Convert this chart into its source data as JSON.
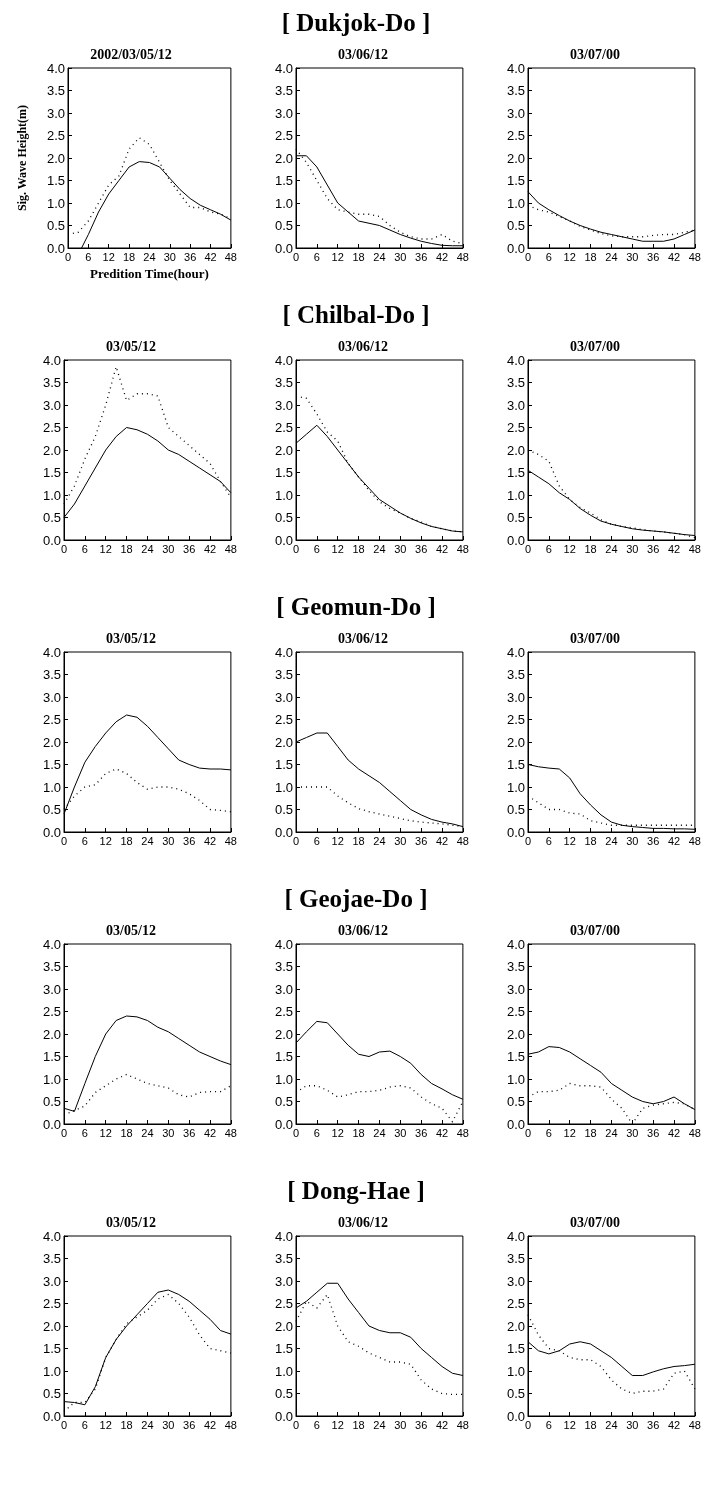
{
  "chart_data": [
    {
      "type": "line",
      "title": "2002/03/05/12",
      "xlabel": "Predition Time(hour)",
      "ylabel": "Sig. Wave Height(m)",
      "x": [
        0,
        3,
        6,
        9,
        12,
        15,
        18,
        21,
        24,
        27,
        30,
        33,
        36,
        39,
        42,
        45,
        48
      ],
      "xlim": [
        0,
        48
      ],
      "ylim": [
        0,
        4
      ],
      "xticks": [
        0,
        6,
        12,
        18,
        24,
        30,
        36,
        42,
        48
      ],
      "yticks": [
        {
          "value": 0,
          "label": "0.0"
        },
        {
          "value": 0.5,
          "label": "0.5"
        },
        {
          "value": 1,
          "label": "1.0"
        },
        {
          "value": 1.5,
          "label": "1.5"
        },
        {
          "value": 2,
          "label": "2.0"
        },
        {
          "value": 2.5,
          "label": "2.5"
        },
        {
          "value": 3,
          "label": "3.0"
        },
        {
          "value": 3.5,
          "label": "3.5"
        },
        {
          "value": 4,
          "label": "4.0"
        }
      ],
      "marker": "none",
      "series": [
        {
          "color": "#000000",
          "line_style": "solid",
          "x": [
            4,
            6,
            9,
            12,
            15,
            18,
            21,
            24,
            27,
            30,
            33,
            36,
            39,
            42,
            45,
            48
          ],
          "values": [
            0,
            0.3,
            0.8,
            1.2,
            1.5,
            1.8,
            1.92,
            1.9,
            1.8,
            1.55,
            1.3,
            1.1,
            0.95,
            0.85,
            0.75,
            0.62
          ]
        },
        {
          "color": "#000000",
          "line_style": "dotted",
          "values": [
            0.3,
            0.35,
            0.6,
            1.0,
            1.4,
            1.6,
            2.2,
            2.45,
            2.3,
            1.9,
            1.5,
            1.2,
            0.9,
            0.9,
            0.8,
            0.75,
            0.65
          ]
        }
      ]
    },
    {
      "type": "line",
      "title": "03/06/12",
      "annotations": [
        "[ Dukjok-Do ]"
      ],
      "x": [
        0,
        3,
        6,
        9,
        12,
        15,
        18,
        21,
        24,
        27,
        30,
        33,
        36,
        39,
        42,
        45,
        48
      ],
      "xlim": [
        0,
        48
      ],
      "ylim": [
        0,
        4
      ],
      "xticks": [
        0,
        6,
        12,
        18,
        24,
        30,
        36,
        42,
        48
      ],
      "yticks": [
        {
          "value": 0,
          "label": "0.0"
        },
        {
          "value": 0.5,
          "label": "0.5"
        },
        {
          "value": 1,
          "label": "1.0"
        },
        {
          "value": 1.5,
          "label": "1.5"
        },
        {
          "value": 2,
          "label": "2.0"
        },
        {
          "value": 2.5,
          "label": "2.5"
        },
        {
          "value": 3,
          "label": "3.0"
        },
        {
          "value": 3.5,
          "label": "3.5"
        },
        {
          "value": 4,
          "label": "4.0"
        }
      ],
      "marker": "none",
      "series": [
        {
          "color": "#000000",
          "line_style": "solid",
          "values": [
            2.05,
            2.05,
            1.8,
            1.4,
            1.0,
            0.8,
            0.6,
            0.55,
            0.5,
            0.4,
            0.3,
            0.22,
            0.15,
            0.1,
            0.06,
            0.05,
            0.05
          ]
        },
        {
          "color": "#000000",
          "line_style": "dotted",
          "values": [
            2.2,
            1.9,
            1.5,
            1.1,
            0.85,
            0.8,
            0.75,
            0.75,
            0.7,
            0.5,
            0.35,
            0.25,
            0.2,
            0.2,
            0.3,
            0.15,
            0.1
          ]
        }
      ]
    },
    {
      "type": "line",
      "title": "03/07/00",
      "x": [
        0,
        3,
        6,
        9,
        12,
        15,
        18,
        21,
        24,
        27,
        30,
        33,
        36,
        39,
        42,
        45,
        48
      ],
      "xlim": [
        0,
        48
      ],
      "ylim": [
        0,
        4
      ],
      "xticks": [
        0,
        6,
        12,
        18,
        24,
        30,
        36,
        42,
        48
      ],
      "yticks": [
        {
          "value": 0,
          "label": "0.0"
        },
        {
          "value": 0.5,
          "label": "0.5"
        },
        {
          "value": 1,
          "label": "1.0"
        },
        {
          "value": 1.5,
          "label": "1.5"
        },
        {
          "value": 2,
          "label": "2.0"
        },
        {
          "value": 2.5,
          "label": "2.5"
        },
        {
          "value": 3,
          "label": "3.0"
        },
        {
          "value": 3.5,
          "label": "3.5"
        },
        {
          "value": 4,
          "label": "4.0"
        }
      ],
      "marker": "none",
      "series": [
        {
          "color": "#000000",
          "line_style": "solid",
          "values": [
            1.25,
            1.0,
            0.85,
            0.72,
            0.6,
            0.5,
            0.42,
            0.35,
            0.3,
            0.25,
            0.2,
            0.15,
            0.15,
            0.15,
            0.2,
            0.3,
            0.4
          ]
        },
        {
          "color": "#000000",
          "line_style": "dotted",
          "values": [
            0.95,
            0.85,
            0.8,
            0.7,
            0.6,
            0.48,
            0.4,
            0.32,
            0.27,
            0.25,
            0.25,
            0.25,
            0.28,
            0.3,
            0.3,
            0.35,
            0.4
          ]
        }
      ]
    },
    {
      "type": "line",
      "title": "03/05/12",
      "x": [
        0,
        3,
        6,
        9,
        12,
        15,
        18,
        21,
        24,
        27,
        30,
        33,
        36,
        39,
        42,
        45,
        48
      ],
      "xlim": [
        0,
        48
      ],
      "ylim": [
        0,
        4
      ],
      "xticks": [
        0,
        6,
        12,
        18,
        24,
        30,
        36,
        42,
        48
      ],
      "yticks": [
        {
          "value": 0,
          "label": "0.0"
        },
        {
          "value": 0.5,
          "label": "0.5"
        },
        {
          "value": 1,
          "label": "1.0"
        },
        {
          "value": 1.5,
          "label": "1.5"
        },
        {
          "value": 2,
          "label": "2.0"
        },
        {
          "value": 2.5,
          "label": "2.5"
        },
        {
          "value": 3,
          "label": "3.0"
        },
        {
          "value": 3.5,
          "label": "3.5"
        },
        {
          "value": 4,
          "label": "4.0"
        }
      ],
      "marker": "none",
      "series": [
        {
          "color": "#000000",
          "line_style": "solid",
          "values": [
            0.5,
            0.8,
            1.2,
            1.6,
            2.0,
            2.3,
            2.5,
            2.45,
            2.35,
            2.2,
            2.0,
            1.9,
            1.75,
            1.6,
            1.45,
            1.3,
            1.05
          ]
        },
        {
          "color": "#000000",
          "line_style": "dotted",
          "values": [
            0.8,
            1.2,
            1.8,
            2.3,
            3.0,
            3.85,
            3.1,
            3.25,
            3.25,
            3.2,
            2.5,
            2.3,
            2.1,
            1.9,
            1.7,
            1.3,
            0.95
          ]
        }
      ]
    },
    {
      "type": "line",
      "title": "03/06/12",
      "annotations": [
        "[ Chilbal-Do ]"
      ],
      "x": [
        0,
        3,
        6,
        9,
        12,
        15,
        18,
        21,
        24,
        27,
        30,
        33,
        36,
        39,
        42,
        45,
        48
      ],
      "xlim": [
        0,
        48
      ],
      "ylim": [
        0,
        4
      ],
      "xticks": [
        0,
        6,
        12,
        18,
        24,
        30,
        36,
        42,
        48
      ],
      "yticks": [
        {
          "value": 0,
          "label": "0.0"
        },
        {
          "value": 0.5,
          "label": "0.5"
        },
        {
          "value": 1,
          "label": "1.0"
        },
        {
          "value": 1.5,
          "label": "1.5"
        },
        {
          "value": 2,
          "label": "2.0"
        },
        {
          "value": 2.5,
          "label": "2.5"
        },
        {
          "value": 3,
          "label": "3.0"
        },
        {
          "value": 3.5,
          "label": "3.5"
        },
        {
          "value": 4,
          "label": "4.0"
        }
      ],
      "marker": "none",
      "series": [
        {
          "color": "#000000",
          "line_style": "solid",
          "values": [
            2.15,
            2.35,
            2.55,
            2.3,
            2.0,
            1.7,
            1.4,
            1.15,
            0.9,
            0.75,
            0.6,
            0.48,
            0.38,
            0.3,
            0.25,
            0.2,
            0.18
          ]
        },
        {
          "color": "#000000",
          "line_style": "dotted",
          "values": [
            3.2,
            3.15,
            2.8,
            2.4,
            2.2,
            1.7,
            1.4,
            1.1,
            0.85,
            0.7,
            0.6,
            0.48,
            0.4,
            0.3,
            0.25,
            0.2,
            0.18
          ]
        }
      ]
    },
    {
      "type": "line",
      "title": "03/07/00",
      "x": [
        0,
        3,
        6,
        9,
        12,
        15,
        18,
        21,
        24,
        27,
        30,
        33,
        36,
        39,
        42,
        45,
        48
      ],
      "xlim": [
        0,
        48
      ],
      "ylim": [
        0,
        4
      ],
      "xticks": [
        0,
        6,
        12,
        18,
        24,
        30,
        36,
        42,
        48
      ],
      "yticks": [
        {
          "value": 0,
          "label": "0.0"
        },
        {
          "value": 0.5,
          "label": "0.5"
        },
        {
          "value": 1,
          "label": "1.0"
        },
        {
          "value": 1.5,
          "label": "1.5"
        },
        {
          "value": 2,
          "label": "2.0"
        },
        {
          "value": 2.5,
          "label": "2.5"
        },
        {
          "value": 3,
          "label": "3.0"
        },
        {
          "value": 3.5,
          "label": "3.5"
        },
        {
          "value": 4,
          "label": "4.0"
        }
      ],
      "marker": "none",
      "series": [
        {
          "color": "#000000",
          "line_style": "solid",
          "values": [
            1.55,
            1.4,
            1.25,
            1.05,
            0.9,
            0.7,
            0.55,
            0.42,
            0.35,
            0.3,
            0.25,
            0.22,
            0.2,
            0.18,
            0.15,
            0.12,
            0.1
          ]
        },
        {
          "color": "#000000",
          "line_style": "dotted",
          "values": [
            2.0,
            1.9,
            1.75,
            1.2,
            0.9,
            0.72,
            0.6,
            0.45,
            0.35,
            0.3,
            0.27,
            0.23,
            0.2,
            0.18,
            0.15,
            0.12,
            0.05
          ]
        }
      ]
    },
    {
      "type": "line",
      "title": "03/05/12",
      "x": [
        0,
        3,
        6,
        9,
        12,
        15,
        18,
        21,
        24,
        27,
        30,
        33,
        36,
        39,
        42,
        45,
        48
      ],
      "xlim": [
        0,
        48
      ],
      "ylim": [
        0,
        4
      ],
      "xticks": [
        0,
        6,
        12,
        18,
        24,
        30,
        36,
        42,
        48
      ],
      "yticks": [
        {
          "value": 0,
          "label": "0.0"
        },
        {
          "value": 0.5,
          "label": "0.5"
        },
        {
          "value": 1,
          "label": "1.0"
        },
        {
          "value": 1.5,
          "label": "1.5"
        },
        {
          "value": 2,
          "label": "2.0"
        },
        {
          "value": 2.5,
          "label": "2.5"
        },
        {
          "value": 3,
          "label": "3.0"
        },
        {
          "value": 3.5,
          "label": "3.5"
        },
        {
          "value": 4,
          "label": "4.0"
        }
      ],
      "marker": "none",
      "series": [
        {
          "color": "#000000",
          "line_style": "solid",
          "values": [
            0.4,
            1.0,
            1.55,
            1.9,
            2.2,
            2.45,
            2.6,
            2.55,
            2.35,
            2.1,
            1.85,
            1.6,
            1.5,
            1.42,
            1.4,
            1.4,
            1.38
          ]
        },
        {
          "color": "#000000",
          "line_style": "dotted",
          "values": [
            0.5,
            0.8,
            1.0,
            1.05,
            1.3,
            1.4,
            1.3,
            1.1,
            0.95,
            1.0,
            1.0,
            0.95,
            0.85,
            0.7,
            0.5,
            0.48,
            0.45
          ]
        }
      ]
    },
    {
      "type": "line",
      "title": "03/06/12",
      "annotations": [
        "[ Geomun-Do ]"
      ],
      "x": [
        0,
        3,
        6,
        9,
        12,
        15,
        18,
        21,
        24,
        27,
        30,
        33,
        36,
        39,
        42,
        45,
        48
      ],
      "xlim": [
        0,
        48
      ],
      "ylim": [
        0,
        4
      ],
      "xticks": [
        0,
        6,
        12,
        18,
        24,
        30,
        36,
        42,
        48
      ],
      "yticks": [
        {
          "value": 0,
          "label": "0.0"
        },
        {
          "value": 0.5,
          "label": "0.5"
        },
        {
          "value": 1,
          "label": "1.0"
        },
        {
          "value": 1.5,
          "label": "1.5"
        },
        {
          "value": 2,
          "label": "2.0"
        },
        {
          "value": 2.5,
          "label": "2.5"
        },
        {
          "value": 3,
          "label": "3.0"
        },
        {
          "value": 3.5,
          "label": "3.5"
        },
        {
          "value": 4,
          "label": "4.0"
        }
      ],
      "marker": "none",
      "series": [
        {
          "color": "#000000",
          "line_style": "solid",
          "values": [
            2.0,
            2.1,
            2.2,
            2.2,
            1.9,
            1.6,
            1.4,
            1.25,
            1.1,
            0.9,
            0.7,
            0.5,
            0.38,
            0.28,
            0.22,
            0.18,
            0.12
          ]
        },
        {
          "color": "#000000",
          "line_style": "dotted",
          "values": [
            1.0,
            1.0,
            1.0,
            1.0,
            0.8,
            0.65,
            0.52,
            0.45,
            0.4,
            0.35,
            0.3,
            0.25,
            0.22,
            0.2,
            0.18,
            0.15,
            0.12
          ]
        }
      ]
    },
    {
      "type": "line",
      "title": "03/07/00",
      "x": [
        0,
        3,
        6,
        9,
        12,
        15,
        18,
        21,
        24,
        27,
        30,
        33,
        36,
        39,
        42,
        45,
        48
      ],
      "xlim": [
        0,
        48
      ],
      "ylim": [
        0,
        4
      ],
      "xticks": [
        0,
        6,
        12,
        18,
        24,
        30,
        36,
        42,
        48
      ],
      "yticks": [
        {
          "value": 0,
          "label": "0.0"
        },
        {
          "value": 0.5,
          "label": "0.5"
        },
        {
          "value": 1,
          "label": "1.0"
        },
        {
          "value": 1.5,
          "label": "1.5"
        },
        {
          "value": 2,
          "label": "2.0"
        },
        {
          "value": 2.5,
          "label": "2.5"
        },
        {
          "value": 3,
          "label": "3.0"
        },
        {
          "value": 3.5,
          "label": "3.5"
        },
        {
          "value": 4,
          "label": "4.0"
        }
      ],
      "marker": "none",
      "series": [
        {
          "color": "#000000",
          "line_style": "solid",
          "values": [
            1.5,
            1.45,
            1.42,
            1.4,
            1.2,
            0.85,
            0.6,
            0.38,
            0.22,
            0.15,
            0.12,
            0.1,
            0.08,
            0.08,
            0.07,
            0.07,
            0.06
          ]
        },
        {
          "color": "#000000",
          "line_style": "dotted",
          "values": [
            0.8,
            0.65,
            0.5,
            0.5,
            0.42,
            0.4,
            0.25,
            0.2,
            0.15,
            0.15,
            0.15,
            0.15,
            0.15,
            0.15,
            0.15,
            0.15,
            0.15
          ]
        }
      ]
    },
    {
      "type": "line",
      "title": "03/05/12",
      "x": [
        0,
        3,
        6,
        9,
        12,
        15,
        18,
        21,
        24,
        27,
        30,
        33,
        36,
        39,
        42,
        45,
        48
      ],
      "xlim": [
        0,
        48
      ],
      "ylim": [
        0,
        4
      ],
      "xticks": [
        0,
        6,
        12,
        18,
        24,
        30,
        36,
        42,
        48
      ],
      "yticks": [
        {
          "value": 0,
          "label": "0.0"
        },
        {
          "value": 0.5,
          "label": "0.5"
        },
        {
          "value": 1,
          "label": "1.0"
        },
        {
          "value": 1.5,
          "label": "1.5"
        },
        {
          "value": 2,
          "label": "2.0"
        },
        {
          "value": 2.5,
          "label": "2.5"
        },
        {
          "value": 3,
          "label": "3.0"
        },
        {
          "value": 3.5,
          "label": "3.5"
        },
        {
          "value": 4,
          "label": "4.0"
        }
      ],
      "marker": "none",
      "series": [
        {
          "color": "#000000",
          "line_style": "solid",
          "values": [
            0.35,
            0.28,
            0.9,
            1.5,
            2.0,
            2.3,
            2.4,
            2.38,
            2.3,
            2.15,
            2.05,
            1.9,
            1.75,
            1.6,
            1.5,
            1.4,
            1.32
          ]
        },
        {
          "color": "#000000",
          "line_style": "dotted",
          "values": [
            0.2,
            0.3,
            0.4,
            0.7,
            0.85,
            1.0,
            1.1,
            1.0,
            0.9,
            0.85,
            0.8,
            0.65,
            0.6,
            0.7,
            0.72,
            0.72,
            0.85
          ]
        }
      ]
    },
    {
      "type": "line",
      "title": "03/06/12",
      "annotations": [
        "[ Geojae-Do ]"
      ],
      "x": [
        0,
        3,
        6,
        9,
        12,
        15,
        18,
        21,
        24,
        27,
        30,
        33,
        36,
        39,
        42,
        45,
        48
      ],
      "xlim": [
        0,
        48
      ],
      "ylim": [
        0,
        4
      ],
      "xticks": [
        0,
        6,
        12,
        18,
        24,
        30,
        36,
        42,
        48
      ],
      "yticks": [
        {
          "value": 0,
          "label": "0.0"
        },
        {
          "value": 0.5,
          "label": "0.5"
        },
        {
          "value": 1,
          "label": "1.0"
        },
        {
          "value": 1.5,
          "label": "1.5"
        },
        {
          "value": 2,
          "label": "2.0"
        },
        {
          "value": 2.5,
          "label": "2.5"
        },
        {
          "value": 3,
          "label": "3.0"
        },
        {
          "value": 3.5,
          "label": "3.5"
        },
        {
          "value": 4,
          "label": "4.0"
        }
      ],
      "marker": "none",
      "series": [
        {
          "color": "#000000",
          "line_style": "solid",
          "values": [
            1.8,
            2.05,
            2.28,
            2.25,
            2.0,
            1.75,
            1.55,
            1.5,
            1.6,
            1.62,
            1.5,
            1.35,
            1.1,
            0.9,
            0.78,
            0.65,
            0.55
          ]
        },
        {
          "color": "#000000",
          "line_style": "dotted",
          "values": [
            0.7,
            0.85,
            0.85,
            0.75,
            0.6,
            0.65,
            0.72,
            0.72,
            0.75,
            0.82,
            0.85,
            0.8,
            0.6,
            0.45,
            0.35,
            0.05,
            0.5
          ]
        }
      ]
    },
    {
      "type": "line",
      "title": "03/07/00",
      "x": [
        0,
        3,
        6,
        9,
        12,
        15,
        18,
        21,
        24,
        27,
        30,
        33,
        36,
        39,
        42,
        45,
        48
      ],
      "xlim": [
        0,
        48
      ],
      "ylim": [
        0,
        4
      ],
      "xticks": [
        0,
        6,
        12,
        18,
        24,
        30,
        36,
        42,
        48
      ],
      "yticks": [
        {
          "value": 0,
          "label": "0.0"
        },
        {
          "value": 0.5,
          "label": "0.5"
        },
        {
          "value": 1,
          "label": "1.0"
        },
        {
          "value": 1.5,
          "label": "1.5"
        },
        {
          "value": 2,
          "label": "2.0"
        },
        {
          "value": 2.5,
          "label": "2.5"
        },
        {
          "value": 3,
          "label": "3.0"
        },
        {
          "value": 3.5,
          "label": "3.5"
        },
        {
          "value": 4,
          "label": "4.0"
        }
      ],
      "marker": "none",
      "series": [
        {
          "color": "#000000",
          "line_style": "solid",
          "values": [
            1.55,
            1.6,
            1.72,
            1.7,
            1.6,
            1.45,
            1.3,
            1.15,
            0.9,
            0.75,
            0.6,
            0.5,
            0.45,
            0.5,
            0.6,
            0.45,
            0.32
          ]
        },
        {
          "color": "#000000",
          "line_style": "dotted",
          "values": [
            0.6,
            0.72,
            0.72,
            0.75,
            0.9,
            0.85,
            0.85,
            0.82,
            0.55,
            0.35,
            0.0,
            0.35,
            0.42,
            0.45,
            0.48,
            0.45,
            0.32
          ]
        }
      ]
    },
    {
      "type": "line",
      "title": "03/05/12",
      "x": [
        0,
        3,
        6,
        9,
        12,
        15,
        18,
        21,
        24,
        27,
        30,
        33,
        36,
        39,
        42,
        45,
        48
      ],
      "xlim": [
        0,
        48
      ],
      "ylim": [
        0,
        4
      ],
      "xticks": [
        0,
        6,
        12,
        18,
        24,
        30,
        36,
        42,
        48
      ],
      "yticks": [
        {
          "value": 0,
          "label": "0.0"
        },
        {
          "value": 0.5,
          "label": "0.5"
        },
        {
          "value": 1,
          "label": "1.0"
        },
        {
          "value": 1.5,
          "label": "1.5"
        },
        {
          "value": 2,
          "label": "2.0"
        },
        {
          "value": 2.5,
          "label": "2.5"
        },
        {
          "value": 3,
          "label": "3.0"
        },
        {
          "value": 3.5,
          "label": "3.5"
        },
        {
          "value": 4,
          "label": "4.0"
        }
      ],
      "marker": "none",
      "series": [
        {
          "color": "#000000",
          "line_style": "solid",
          "values": [
            0.32,
            0.3,
            0.25,
            0.65,
            1.3,
            1.7,
            2.0,
            2.25,
            2.5,
            2.75,
            2.8,
            2.7,
            2.55,
            2.35,
            2.15,
            1.9,
            1.82
          ]
        },
        {
          "color": "#000000",
          "line_style": "dotted",
          "values": [
            0.1,
            0.3,
            0.3,
            0.6,
            1.3,
            1.7,
            2.05,
            2.2,
            2.35,
            2.6,
            2.7,
            2.5,
            2.2,
            1.8,
            1.5,
            1.45,
            1.4
          ]
        }
      ]
    },
    {
      "type": "line",
      "title": "03/06/12",
      "annotations": [
        "[ Dong-Hae ]"
      ],
      "x": [
        0,
        3,
        6,
        9,
        12,
        15,
        18,
        21,
        24,
        27,
        30,
        33,
        36,
        39,
        42,
        45,
        48
      ],
      "xlim": [
        0,
        48
      ],
      "ylim": [
        0,
        4
      ],
      "xticks": [
        0,
        6,
        12,
        18,
        24,
        30,
        36,
        42,
        48
      ],
      "yticks": [
        {
          "value": 0,
          "label": "0.0"
        },
        {
          "value": 0.5,
          "label": "0.5"
        },
        {
          "value": 1,
          "label": "1.0"
        },
        {
          "value": 1.5,
          "label": "1.5"
        },
        {
          "value": 2,
          "label": "2.0"
        },
        {
          "value": 2.5,
          "label": "2.5"
        },
        {
          "value": 3,
          "label": "3.0"
        },
        {
          "value": 3.5,
          "label": "3.5"
        },
        {
          "value": 4,
          "label": "4.0"
        }
      ],
      "marker": "none",
      "series": [
        {
          "color": "#000000",
          "line_style": "solid",
          "values": [
            2.4,
            2.55,
            2.75,
            2.95,
            2.95,
            2.6,
            2.3,
            2.0,
            1.9,
            1.85,
            1.85,
            1.75,
            1.5,
            1.3,
            1.1,
            0.95,
            0.9
          ]
        },
        {
          "color": "#000000",
          "line_style": "dotted",
          "values": [
            2.1,
            2.55,
            2.4,
            2.7,
            2.0,
            1.65,
            1.55,
            1.4,
            1.3,
            1.2,
            1.2,
            1.15,
            0.8,
            0.6,
            0.5,
            0.48,
            0.48
          ]
        }
      ]
    },
    {
      "type": "line",
      "title": "03/07/00",
      "x": [
        0,
        3,
        6,
        9,
        12,
        15,
        18,
        21,
        24,
        27,
        30,
        33,
        36,
        39,
        42,
        45,
        48
      ],
      "xlim": [
        0,
        48
      ],
      "ylim": [
        0,
        4
      ],
      "xticks": [
        0,
        6,
        12,
        18,
        24,
        30,
        36,
        42,
        48
      ],
      "yticks": [
        {
          "value": 0,
          "label": "0.0"
        },
        {
          "value": 0.5,
          "label": "0.5"
        },
        {
          "value": 1,
          "label": "1.0"
        },
        {
          "value": 1.5,
          "label": "1.5"
        },
        {
          "value": 2,
          "label": "2.0"
        },
        {
          "value": 2.5,
          "label": "2.5"
        },
        {
          "value": 3,
          "label": "3.0"
        },
        {
          "value": 3.5,
          "label": "3.5"
        },
        {
          "value": 4,
          "label": "4.0"
        }
      ],
      "marker": "none",
      "series": [
        {
          "color": "#000000",
          "line_style": "solid",
          "values": [
            1.65,
            1.45,
            1.38,
            1.45,
            1.6,
            1.65,
            1.6,
            1.45,
            1.3,
            1.1,
            0.9,
            0.9,
            0.98,
            1.05,
            1.1,
            1.12,
            1.15
          ]
        },
        {
          "color": "#000000",
          "line_style": "dotted",
          "values": [
            2.25,
            1.8,
            1.5,
            1.45,
            1.3,
            1.25,
            1.25,
            1.1,
            0.8,
            0.6,
            0.5,
            0.55,
            0.55,
            0.6,
            0.95,
            1.0,
            0.6
          ]
        }
      ]
    }
  ]
}
